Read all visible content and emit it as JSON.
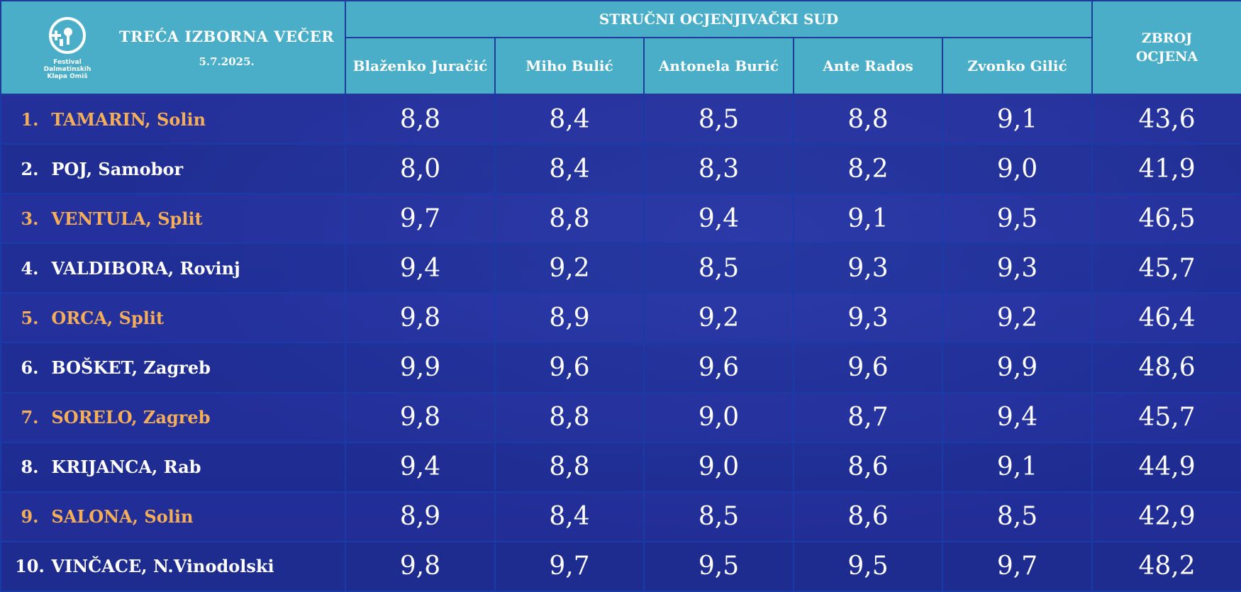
{
  "header": {
    "logo_text": [
      "Festival",
      "Dalmatinskih",
      "Klapa Omiš"
    ],
    "evening_title": "TREĆA IZBORNA VEČER",
    "date": "5.7.2025.",
    "jury_title": "STRUČNI OCJENJIVAČKI SUD",
    "judges": [
      "Blaženko Juračić",
      "Miho Bulić",
      "Antonela Burić",
      "Ante Rados",
      "Zvonko Gilić"
    ],
    "total_label_line1": "ZBROJ",
    "total_label_line2": "OCJENA"
  },
  "colors": {
    "header_bg": "#4aaec9",
    "highlight_name": "#f4ad58",
    "body_bg": "#1f2f96"
  },
  "rows": [
    {
      "rank": "1.",
      "name": "TAMARIN, Solin",
      "scores": [
        "8,8",
        "8,4",
        "8,5",
        "8,8",
        "9,1"
      ],
      "total": "43,6",
      "highlight": true
    },
    {
      "rank": "2.",
      "name": "POJ, Samobor",
      "scores": [
        "8,0",
        "8,4",
        "8,3",
        "8,2",
        "9,0"
      ],
      "total": "41,9",
      "highlight": false
    },
    {
      "rank": "3.",
      "name": "VENTULA, Split",
      "scores": [
        "9,7",
        "8,8",
        "9,4",
        "9,1",
        "9,5"
      ],
      "total": "46,5",
      "highlight": true
    },
    {
      "rank": "4.",
      "name": "VALDIBORA, Rovinj",
      "scores": [
        "9,4",
        "9,2",
        "8,5",
        "9,3",
        "9,3"
      ],
      "total": "45,7",
      "highlight": false
    },
    {
      "rank": "5.",
      "name": "ORCA, Split",
      "scores": [
        "9,8",
        "8,9",
        "9,2",
        "9,3",
        "9,2"
      ],
      "total": "46,4",
      "highlight": true
    },
    {
      "rank": "6.",
      "name": "BOŠKET, Zagreb",
      "scores": [
        "9,9",
        "9,6",
        "9,6",
        "9,6",
        "9,9"
      ],
      "total": "48,6",
      "highlight": false
    },
    {
      "rank": "7.",
      "name": "SORELO, Zagreb",
      "scores": [
        "9,8",
        "8,8",
        "9,0",
        "8,7",
        "9,4"
      ],
      "total": "45,7",
      "highlight": true
    },
    {
      "rank": "8.",
      "name": "KRIJANCA, Rab",
      "scores": [
        "9,4",
        "8,8",
        "9,0",
        "8,6",
        "9,1"
      ],
      "total": "44,9",
      "highlight": false
    },
    {
      "rank": "9.",
      "name": "SALONA, Solin",
      "scores": [
        "8,9",
        "8,4",
        "8,5",
        "8,6",
        "8,5"
      ],
      "total": "42,9",
      "highlight": true
    },
    {
      "rank": "10.",
      "name": "VINČACE, N.Vinodolski",
      "scores": [
        "9,8",
        "9,7",
        "9,5",
        "9,5",
        "9,7"
      ],
      "total": "48,2",
      "highlight": false
    }
  ]
}
